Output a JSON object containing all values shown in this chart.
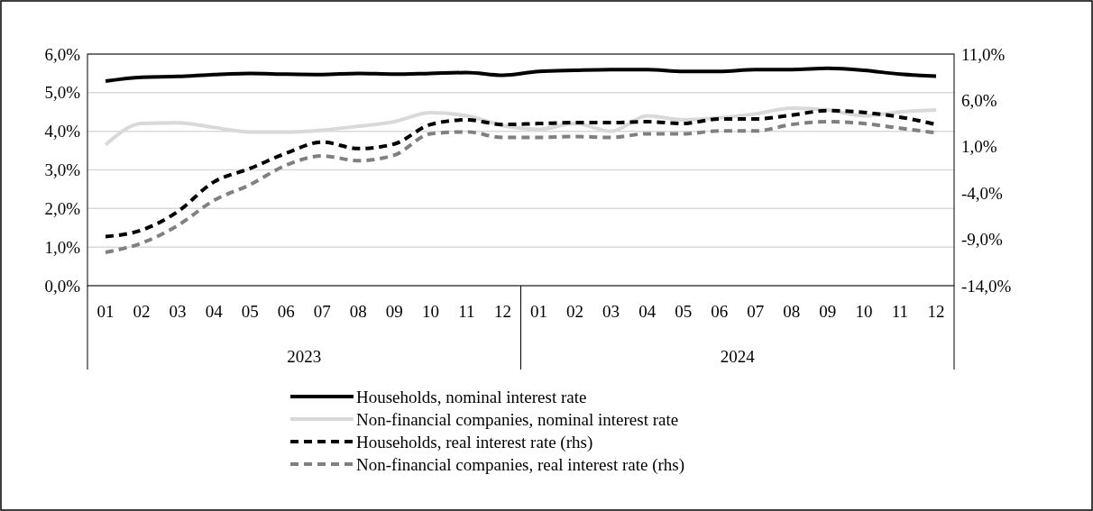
{
  "chart_data": {
    "type": "line",
    "categories": [
      "01",
      "02",
      "03",
      "04",
      "05",
      "06",
      "07",
      "08",
      "09",
      "10",
      "11",
      "12",
      "01",
      "02",
      "03",
      "04",
      "05",
      "06",
      "07",
      "08",
      "09",
      "10",
      "11",
      "12"
    ],
    "annotations": [
      "2023",
      "2024"
    ],
    "series": [
      {
        "name": "Households,  nominal interest rate",
        "color": "#000000",
        "line_style": "solid",
        "values": [
          5.3,
          5.4,
          5.42,
          5.47,
          5.5,
          5.48,
          5.47,
          5.5,
          5.48,
          5.5,
          5.52,
          5.45,
          5.55,
          5.58,
          5.6,
          5.6,
          5.55,
          5.55,
          5.6,
          5.6,
          5.63,
          5.58,
          5.48,
          5.43
        ]
      },
      {
        "name": "Non-financial companies, nominal interest rate",
        "color": "#d9d9d9",
        "line_style": "solid",
        "values": [
          3.65,
          4.2,
          4.22,
          4.1,
          3.98,
          3.98,
          4.03,
          4.13,
          4.25,
          4.48,
          4.4,
          4.15,
          4.05,
          4.2,
          4.0,
          4.4,
          4.3,
          4.35,
          4.45,
          4.6,
          4.55,
          4.4,
          4.5,
          4.55
        ]
      },
      {
        "name": "Households,  real interest rate (rhs)",
        "color": "#000000",
        "line_style": "dashed",
        "axis": "y2",
        "values": [
          -8.7,
          -8.0,
          -6.0,
          -2.8,
          -1.35,
          0.3,
          1.5,
          0.8,
          1.3,
          3.4,
          3.9,
          3.4,
          3.5,
          3.6,
          3.6,
          3.7,
          3.5,
          4.0,
          4.0,
          4.4,
          4.9,
          4.7,
          4.2,
          3.4
        ]
      },
      {
        "name": "Non-financial companies, real interest rate (rhs)",
        "color": "#808080",
        "line_style": "dashed",
        "axis": "y2",
        "values": [
          -10.4,
          -9.4,
          -7.5,
          -4.8,
          -3.1,
          -1.0,
          0.0,
          -0.5,
          0.1,
          2.4,
          2.6,
          2.0,
          2.0,
          2.1,
          2.0,
          2.4,
          2.4,
          2.7,
          2.7,
          3.4,
          3.7,
          3.5,
          3.0,
          2.5
        ]
      }
    ],
    "ylim": [
      0,
      6
    ],
    "yticks": [
      {
        "value": 0,
        "label": "0,0%"
      },
      {
        "value": 1,
        "label": "1,0%"
      },
      {
        "value": 2,
        "label": "2,0%"
      },
      {
        "value": 3,
        "label": "3,0%"
      },
      {
        "value": 4,
        "label": "4,0%"
      },
      {
        "value": 5,
        "label": "5,0%"
      },
      {
        "value": 6,
        "label": "6,0%"
      }
    ],
    "y2lim": [
      -14,
      11
    ],
    "y2ticks": [
      {
        "value": -14,
        "label": "-14,0%"
      },
      {
        "value": -9,
        "label": "-9,0%"
      },
      {
        "value": -4,
        "label": "-4,0%"
      },
      {
        "value": 1,
        "label": "1,0%"
      },
      {
        "value": 6,
        "label": "6,0%"
      },
      {
        "value": 11,
        "label": "11,0%"
      }
    ],
    "grid": "y",
    "legend": "bottom",
    "marker": "none"
  }
}
